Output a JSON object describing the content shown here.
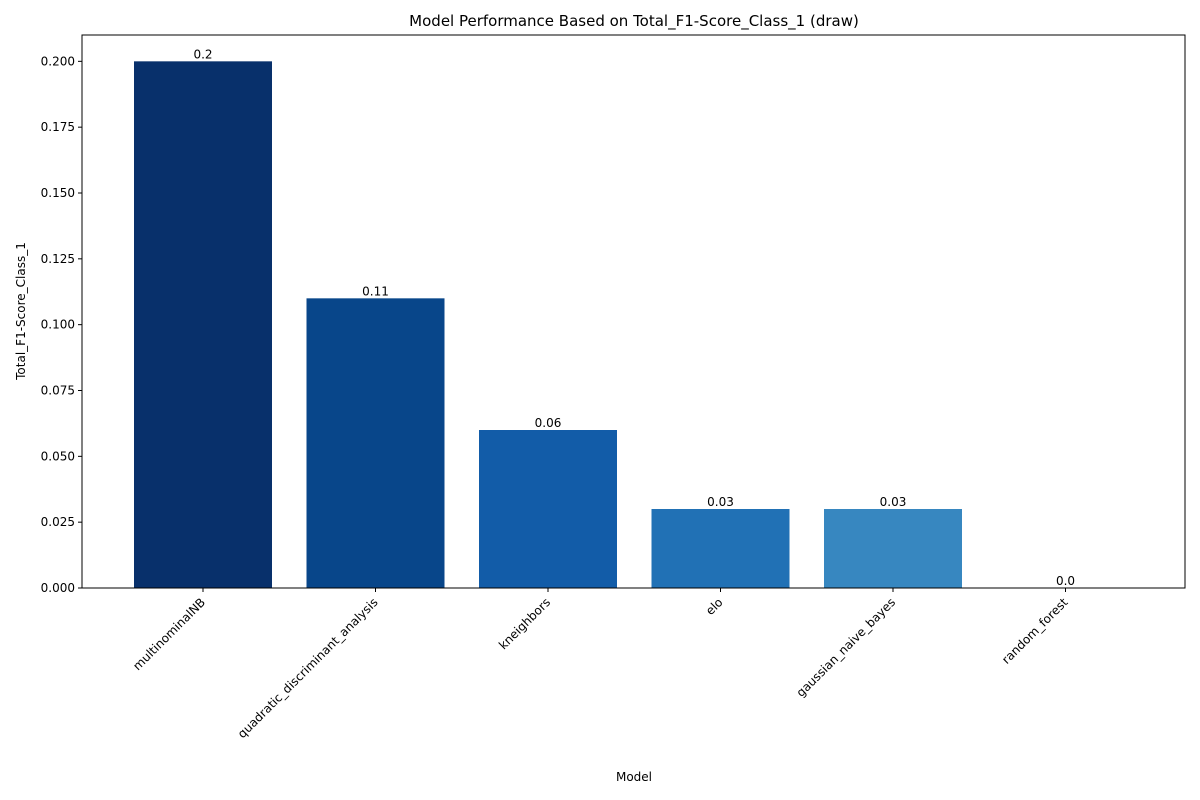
{
  "chart_data": {
    "type": "bar",
    "title": "Model Performance Based on Total_F1-Score_Class_1 (draw)",
    "xlabel": "Model",
    "ylabel": "Total_F1-Score_Class_1",
    "categories": [
      "multinominalNB",
      "quadratic_discriminant_analysis",
      "kneighbors",
      "elo",
      "gaussian_naive_bayes",
      "random_forest"
    ],
    "values": [
      0.2,
      0.11,
      0.06,
      0.03,
      0.03,
      0.0
    ],
    "data_labels": [
      "0.2",
      "0.11",
      "0.06",
      "0.03",
      "0.03",
      "0.0"
    ],
    "bar_colors": [
      "#08306b",
      "#08468a",
      "#125ca8",
      "#2171b5",
      "#3787c0",
      "#4a98c9"
    ],
    "ylim": [
      0,
      0.21
    ],
    "yticks": [
      0.0,
      0.025,
      0.05,
      0.075,
      0.1,
      0.125,
      0.15,
      0.175,
      0.2
    ],
    "ytick_labels": [
      "0.000",
      "0.025",
      "0.050",
      "0.075",
      "0.100",
      "0.125",
      "0.150",
      "0.175",
      "0.200"
    ],
    "grid": false,
    "legend": "none"
  }
}
